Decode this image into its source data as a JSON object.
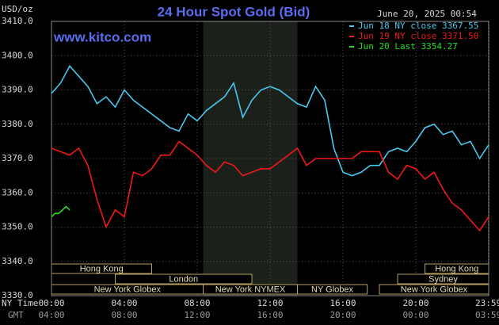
{
  "chart_data": {
    "type": "line",
    "title": "24 Hour Spot Gold (Bid)",
    "timestamp": "June 20, 2025 00:54",
    "source": "www.kitco.com",
    "ylabel": "USD/oz",
    "xlabel": "NY Time",
    "x2label": "GMT",
    "ylim": [
      3330,
      3410
    ],
    "yticks": [
      {
        "value": 3330,
        "label": "3330.0"
      },
      {
        "value": 3340,
        "label": "3340.0"
      },
      {
        "value": 3350,
        "label": "3350.0"
      },
      {
        "value": 3360,
        "label": "3360.0"
      },
      {
        "value": 3370,
        "label": "3370.0"
      },
      {
        "value": 3380,
        "label": "3380.0"
      },
      {
        "value": 3390,
        "label": "3390.0"
      },
      {
        "value": 3400,
        "label": "3400.0"
      },
      {
        "value": 3410,
        "label": "3410.0"
      }
    ],
    "xlim": [
      0,
      24
    ],
    "xticks": [
      {
        "value": 0,
        "label": "00:00"
      },
      {
        "value": 4,
        "label": "04:00"
      },
      {
        "value": 8,
        "label": "08:00"
      },
      {
        "value": 12,
        "label": "12:00"
      },
      {
        "value": 16,
        "label": "16:00"
      },
      {
        "value": 20,
        "label": "20:00"
      },
      {
        "value": 23.98,
        "label": "23:59"
      }
    ],
    "x2ticks": [
      {
        "value": 0,
        "label": "04:00"
      },
      {
        "value": 4,
        "label": "08:00"
      },
      {
        "value": 8,
        "label": "12:00"
      },
      {
        "value": 12,
        "label": "16:00"
      },
      {
        "value": 16,
        "label": "20:00"
      },
      {
        "value": 20,
        "label": "00:00"
      },
      {
        "value": 23.98,
        "label": "03:59"
      }
    ],
    "grid": true,
    "highlight": [
      8.33,
      13.5
    ],
    "session_rows": [
      [
        {
          "label": "Hong Kong",
          "start": 0,
          "end": 5.5
        },
        {
          "label": "Hong Kong",
          "start": 20.5,
          "end": 24
        }
      ],
      [
        {
          "label": "London",
          "start": 3.5,
          "end": 11
        },
        {
          "label": "Sydney",
          "start": 19,
          "end": 24
        }
      ],
      [
        {
          "label": "New York Globex",
          "start": 0,
          "end": 8.33
        },
        {
          "label": "New York NYMEX",
          "start": 8.33,
          "end": 13.5
        },
        {
          "label": "NY Globex",
          "start": 13.5,
          "end": 17.33
        },
        {
          "label": "New York Globex",
          "start": 18,
          "end": 24
        }
      ]
    ],
    "series": [
      {
        "name": "Jun 18 NY close 3367.55",
        "color": "#49c8f0",
        "x": [
          0,
          0.5,
          1,
          1.5,
          2,
          2.5,
          3,
          3.5,
          4,
          4.5,
          5,
          5.5,
          6,
          6.5,
          7,
          7.5,
          8,
          8.5,
          9,
          9.5,
          10,
          10.5,
          11,
          11.5,
          12,
          12.5,
          13,
          13.5,
          14,
          14.5,
          15,
          15.5,
          16,
          16.5,
          17,
          17.5,
          18,
          18.5,
          19,
          19.5,
          20,
          20.5,
          21,
          21.5,
          22,
          22.5,
          23,
          23.5,
          24
        ],
        "values": [
          3389,
          3392,
          3397,
          3394,
          3391,
          3386,
          3388,
          3385,
          3390,
          3387,
          3385,
          3383,
          3381,
          3379,
          3378,
          3383,
          3381,
          3384,
          3386,
          3388,
          3392,
          3382,
          3387,
          3390,
          3391,
          3390,
          3388,
          3386,
          3385,
          3391,
          3387,
          3373,
          3366,
          3365,
          3366,
          3368,
          3368,
          3372,
          3373,
          3372,
          3375,
          3379,
          3380,
          3377,
          3378,
          3374,
          3375,
          3370,
          3374
        ]
      },
      {
        "name": "Jun 19 NY close 3371.50",
        "color": "#f01818",
        "x": [
          0,
          0.5,
          1,
          1.5,
          2,
          2.5,
          3,
          3.5,
          4,
          4.5,
          5,
          5.5,
          6,
          6.5,
          7,
          7.5,
          8,
          8.5,
          9,
          9.5,
          10,
          10.5,
          11,
          11.5,
          12,
          12.5,
          13,
          13.5,
          14,
          14.5,
          15,
          15.5,
          16,
          16.5,
          17,
          17.5,
          18,
          18.5,
          19,
          19.5,
          20,
          20.5,
          21,
          21.5,
          22,
          22.5,
          23,
          23.5,
          24
        ],
        "values": [
          3373,
          3372,
          3371,
          3373,
          3368,
          3358,
          3350,
          3355,
          3353,
          3366,
          3365,
          3367,
          3371,
          3371,
          3375,
          3373,
          3371,
          3368,
          3366,
          3369,
          3368,
          3365,
          3366,
          3367,
          3367,
          3369,
          3371,
          3373,
          3368,
          3370,
          3370,
          3370,
          3370,
          3370,
          3372,
          3372,
          3372,
          3366,
          3364,
          3368,
          3367,
          3364,
          3366,
          3361,
          3357,
          3355,
          3352,
          3349,
          3353
        ]
      },
      {
        "name": "Jun 20 Last 3354.27",
        "color": "#20e020",
        "x": [
          0,
          0.2,
          0.4,
          0.6,
          0.8,
          1
        ],
        "values": [
          3353,
          3354,
          3354,
          3355,
          3356,
          3355
        ]
      }
    ]
  }
}
